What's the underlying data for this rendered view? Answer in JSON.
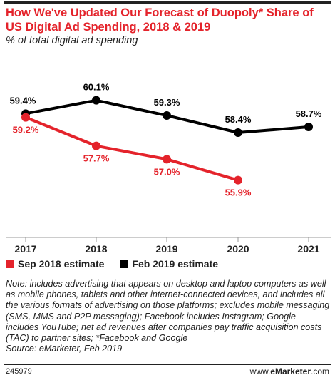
{
  "chart_data": {
    "type": "line",
    "title": "How We've Updated Our Forecast of Duopoly* Share of US Digital Ad Spending, 2018 & 2019",
    "subtitle": "% of total digital ad spending",
    "x": [
      "2017",
      "2018",
      "2019",
      "2020",
      "2021"
    ],
    "ylim": [
      53,
      62
    ],
    "grid": false,
    "legend_position": "bottom-left",
    "series": [
      {
        "name": "Sep 2018 estimate",
        "color": "#e4232b",
        "values": [
          59.2,
          57.7,
          57.0,
          55.9,
          null
        ],
        "labels": [
          "59.2%",
          "57.7%",
          "57.0%",
          "55.9%",
          ""
        ]
      },
      {
        "name": "Feb 2019 estimate",
        "color": "#000000",
        "values": [
          59.4,
          60.1,
          59.3,
          58.4,
          58.7
        ],
        "labels": [
          "59.4%",
          "60.1%",
          "59.3%",
          "58.4%",
          "58.7%"
        ]
      }
    ]
  },
  "note": "Note: includes advertising that appears on desktop and laptop computers as well as mobile phones, tablets and other internet-connected devices, and includes all the various formats of advertising on those platforms; excludes mobile messaging (SMS, MMS and P2P messaging); Facebook includes Instagram; Google includes YouTube; net ad revenues after companies pay traffic acquisition costs (TAC) to partner sites; *Facebook and Google",
  "source": "Source: eMarketer, Feb 2019",
  "chart_id": "245979",
  "brand": {
    "prefix": "www.",
    "name": "eMarketer",
    "suffix": ".com"
  }
}
